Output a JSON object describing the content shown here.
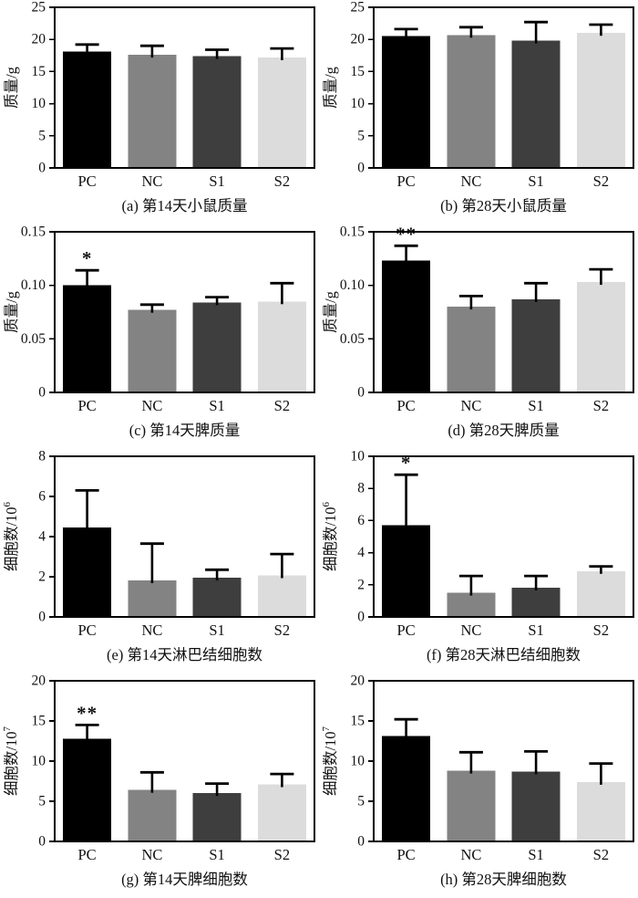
{
  "figure": {
    "background": "#ffffff",
    "axis_color": "#000000",
    "groups": [
      "PC",
      "NC",
      "S1",
      "S2"
    ],
    "bar_colors": [
      "#000000",
      "#838383",
      "#3e3e3e",
      "#dcdcdc"
    ]
  },
  "chart_data": [
    {
      "id": "a",
      "type": "bar",
      "caption": "(a) 第14天小鼠质量",
      "ylabel": "质量/g",
      "ylabel_sup": "",
      "categories": [
        "PC",
        "NC",
        "S1",
        "S2"
      ],
      "values": [
        18.1,
        17.6,
        17.4,
        17.2
      ],
      "errors": [
        1.1,
        1.4,
        1.0,
        1.4
      ],
      "sig": [
        "",
        "",
        "",
        ""
      ],
      "ylim": [
        0,
        25
      ],
      "yticks": [
        0,
        5,
        10,
        15,
        20,
        25
      ],
      "ytick_labels": [
        "0",
        "5",
        "10",
        "15",
        "20",
        "25"
      ]
    },
    {
      "id": "b",
      "type": "bar",
      "caption": "(b) 第28天小鼠质量",
      "ylabel": "质量/g",
      "ylabel_sup": "",
      "categories": [
        "PC",
        "NC",
        "S1",
        "S2"
      ],
      "values": [
        20.5,
        20.7,
        19.8,
        21.0
      ],
      "errors": [
        1.1,
        1.2,
        2.9,
        1.3
      ],
      "sig": [
        "",
        "",
        "",
        ""
      ],
      "ylim": [
        0,
        25
      ],
      "yticks": [
        0,
        5,
        10,
        15,
        20,
        25
      ],
      "ytick_labels": [
        "0",
        "5",
        "10",
        "15",
        "20",
        "25"
      ]
    },
    {
      "id": "c",
      "type": "bar",
      "caption": "(c) 第14天脾质量",
      "ylabel": "质量/g",
      "ylabel_sup": "",
      "categories": [
        "PC",
        "NC",
        "S1",
        "S2"
      ],
      "values": [
        0.1,
        0.077,
        0.084,
        0.085
      ],
      "errors": [
        0.014,
        0.005,
        0.005,
        0.017
      ],
      "sig": [
        "*",
        "",
        "",
        ""
      ],
      "ylim": [
        0,
        0.15
      ],
      "yticks": [
        0,
        0.05,
        0.1,
        0.15
      ],
      "ytick_labels": [
        "0",
        "0.05",
        "0.10",
        "0.15"
      ]
    },
    {
      "id": "d",
      "type": "bar",
      "caption": "(d) 第28天脾质量",
      "ylabel": "质量/g",
      "ylabel_sup": "",
      "categories": [
        "PC",
        "NC",
        "S1",
        "S2"
      ],
      "values": [
        0.123,
        0.08,
        0.087,
        0.103
      ],
      "errors": [
        0.014,
        0.01,
        0.015,
        0.012
      ],
      "sig": [
        "**",
        "",
        "",
        ""
      ],
      "ylim": [
        0,
        0.15
      ],
      "yticks": [
        0,
        0.05,
        0.1,
        0.15
      ],
      "ytick_labels": [
        "0",
        "0.05",
        "0.10",
        "0.15"
      ]
    },
    {
      "id": "e",
      "type": "bar",
      "caption": "(e) 第14天淋巴结细胞数",
      "ylabel": "细胞数/10",
      "ylabel_sup": "6",
      "categories": [
        "PC",
        "NC",
        "S1",
        "S2"
      ],
      "values": [
        4.45,
        1.82,
        1.95,
        2.07
      ],
      "errors": [
        1.85,
        1.83,
        0.4,
        1.06
      ],
      "sig": [
        "",
        "",
        "",
        ""
      ],
      "ylim": [
        0,
        8
      ],
      "yticks": [
        0,
        2,
        4,
        6,
        8
      ],
      "ytick_labels": [
        "0",
        "2",
        "4",
        "6",
        "8"
      ]
    },
    {
      "id": "f",
      "type": "bar",
      "caption": "(f) 第28天淋巴结细胞数",
      "ylabel": "细胞数/10",
      "ylabel_sup": "6",
      "categories": [
        "PC",
        "NC",
        "S1",
        "S2"
      ],
      "values": [
        5.7,
        1.5,
        1.82,
        2.85
      ],
      "errors": [
        3.15,
        1.05,
        0.73,
        0.3
      ],
      "sig": [
        "*",
        "",
        "",
        ""
      ],
      "ylim": [
        0,
        10
      ],
      "yticks": [
        0,
        2,
        4,
        6,
        8,
        10
      ],
      "ytick_labels": [
        "0",
        "2",
        "4",
        "6",
        "8",
        "10"
      ]
    },
    {
      "id": "g",
      "type": "bar",
      "caption": "(g) 第14天脾细胞数",
      "ylabel": "细胞数/10",
      "ylabel_sup": "7",
      "categories": [
        "PC",
        "NC",
        "S1",
        "S2"
      ],
      "values": [
        12.8,
        6.4,
        6.0,
        7.1
      ],
      "errors": [
        1.7,
        2.2,
        1.2,
        1.3
      ],
      "sig": [
        "**",
        "",
        "",
        ""
      ],
      "ylim": [
        0,
        20
      ],
      "yticks": [
        0,
        5,
        10,
        15,
        20
      ],
      "ytick_labels": [
        "0",
        "5",
        "10",
        "15",
        "20"
      ]
    },
    {
      "id": "h",
      "type": "bar",
      "caption": "(h) 第28天脾细胞数",
      "ylabel": "细胞数/10",
      "ylabel_sup": "7",
      "categories": [
        "PC",
        "NC",
        "S1",
        "S2"
      ],
      "values": [
        13.1,
        8.8,
        8.7,
        7.4
      ],
      "errors": [
        2.1,
        2.3,
        2.5,
        2.3
      ],
      "sig": [
        "",
        "",
        "",
        ""
      ],
      "ylim": [
        0,
        20
      ],
      "yticks": [
        0,
        5,
        10,
        15,
        20
      ],
      "ytick_labels": [
        "0",
        "5",
        "10",
        "15",
        "20"
      ]
    }
  ]
}
